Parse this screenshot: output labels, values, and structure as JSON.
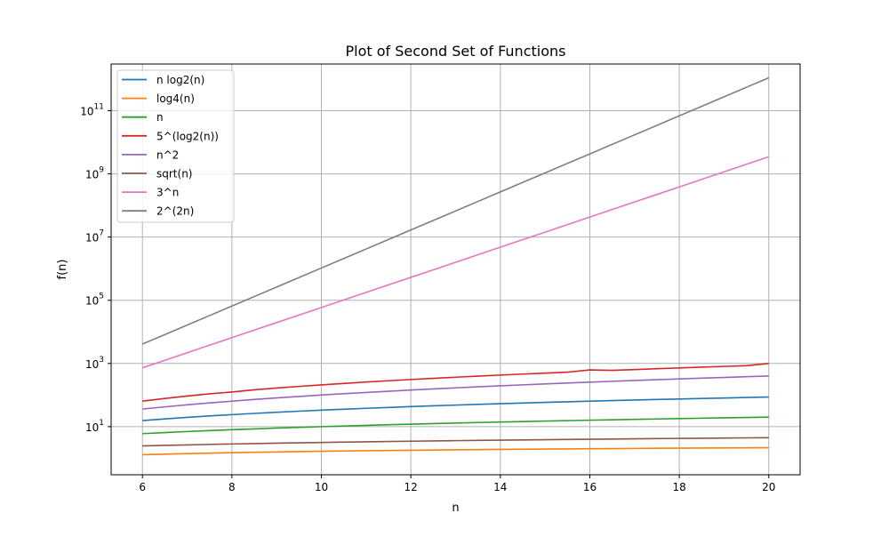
{
  "chart_data": {
    "type": "line",
    "title": "Plot of Second Set of Functions",
    "xlabel": "n",
    "ylabel": "f(n)",
    "xscale": "linear",
    "yscale": "log",
    "xlim": [
      5.3,
      20.7
    ],
    "ylim": [
      0.3,
      3000000000000
    ],
    "xticks": [
      6,
      8,
      10,
      12,
      14,
      16,
      18,
      20
    ],
    "yticks": [
      {
        "value": 10,
        "base": "10",
        "exp": "1"
      },
      {
        "value": 1000,
        "base": "10",
        "exp": "3"
      },
      {
        "value": 100000,
        "base": "10",
        "exp": "5"
      },
      {
        "value": 10000000,
        "base": "10",
        "exp": "7"
      },
      {
        "value": 1000000000,
        "base": "10",
        "exp": "9"
      },
      {
        "value": 100000000000,
        "base": "10",
        "exp": "11"
      }
    ],
    "grid": true,
    "legend_position": "top-left",
    "x": [
      6,
      6.5,
      7,
      7.5,
      8,
      8.5,
      9,
      9.5,
      10,
      10.5,
      11,
      11.5,
      12,
      12.5,
      13,
      13.5,
      14,
      14.5,
      15,
      15.5,
      16,
      16.5,
      17,
      17.5,
      18,
      18.5,
      19,
      19.5,
      20
    ],
    "series": [
      {
        "name": "n log2(n)",
        "color": "#1f77b4",
        "values": [
          15.51,
          17.55,
          19.65,
          21.8,
          24.0,
          26.24,
          28.53,
          30.86,
          33.22,
          35.62,
          38.05,
          40.52,
          43.02,
          45.55,
          48.11,
          50.69,
          53.3,
          55.94,
          58.6,
          61.29,
          64.0,
          66.74,
          69.49,
          72.27,
          75.06,
          77.88,
          80.71,
          83.57,
          86.44
        ]
      },
      {
        "name": "log4(n)",
        "color": "#ff7f0e",
        "values": [
          1.292,
          1.35,
          1.404,
          1.453,
          1.5,
          1.544,
          1.585,
          1.624,
          1.661,
          1.696,
          1.73,
          1.762,
          1.792,
          1.822,
          1.85,
          1.877,
          1.904,
          1.929,
          1.953,
          1.977,
          2.0,
          2.022,
          2.044,
          2.065,
          2.085,
          2.105,
          2.124,
          2.143,
          2.161
        ]
      },
      {
        "name": "n",
        "color": "#2ca02c",
        "values": [
          6,
          6.5,
          7,
          7.5,
          8,
          8.5,
          9,
          9.5,
          10,
          10.5,
          11,
          11.5,
          12,
          12.5,
          13,
          13.5,
          14,
          14.5,
          15,
          15.5,
          16,
          16.5,
          17,
          17.5,
          18,
          18.5,
          19,
          19.5,
          20
        ]
      },
      {
        "name": "5^(log2(n))",
        "color": "#d62728",
        "values": [
          63.98,
          77.9,
          93.1,
          109.6,
          125.0,
          146.4,
          166.5,
          187.6,
          209.9,
          233.3,
          257.8,
          283.4,
          310.2,
          338.1,
          367.2,
          397.4,
          428.7,
          461.3,
          495.0,
          529.8,
          625.0,
          603.0,
          641.4,
          680.9,
          721.6,
          763.5,
          806.6,
          850.9,
          1000.0
        ]
      },
      {
        "name": "n^2",
        "color": "#9467bd",
        "values": [
          36,
          42.25,
          49,
          56.25,
          64,
          72.25,
          81,
          90.25,
          100,
          110.25,
          121,
          132.25,
          144,
          156.25,
          169,
          182.25,
          196,
          210.25,
          225,
          240.25,
          256,
          272.25,
          289,
          306.25,
          324,
          342.25,
          361,
          380.25,
          400
        ]
      },
      {
        "name": "sqrt(n)",
        "color": "#8c564b",
        "values": [
          2.449,
          2.55,
          2.646,
          2.739,
          2.828,
          2.915,
          3.0,
          3.082,
          3.162,
          3.24,
          3.317,
          3.391,
          3.464,
          3.536,
          3.606,
          3.674,
          3.742,
          3.808,
          3.873,
          3.937,
          4.0,
          4.062,
          4.123,
          4.183,
          4.243,
          4.301,
          4.359,
          4.416,
          4.472
        ]
      },
      {
        "name": "3^n",
        "color": "#e377c2",
        "values": [
          729,
          1263,
          2187,
          3788,
          6561,
          11364,
          19683,
          34092,
          59049,
          102276,
          177147,
          306828,
          531441,
          920483,
          1594323,
          2761448,
          4782969,
          8284344,
          14348907,
          24853031,
          43046721,
          74559094,
          129140163,
          223677281,
          387420489,
          671031844,
          1162261467,
          2013095532,
          3486784401
        ]
      },
      {
        "name": "2^(2n)",
        "color": "#7f7f7f",
        "values": [
          4096,
          8192,
          16384,
          32768,
          65536,
          131072,
          262144,
          524288,
          1048576,
          2097152,
          4194304,
          8388608,
          16777216,
          33554432,
          67108864,
          134217728,
          268435456,
          536870912,
          1073741824,
          2147483648,
          4294967296,
          8589934592,
          17179869184,
          34359738368,
          68719476736,
          137438953472,
          274877906944,
          549755813888,
          1099511627776
        ]
      }
    ]
  }
}
